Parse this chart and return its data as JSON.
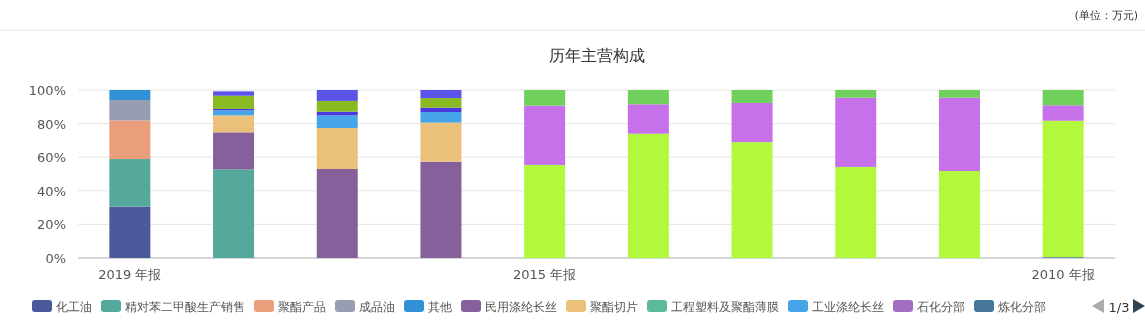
{
  "chart_data": {
    "type": "bar",
    "title": "历年主营构成",
    "stacked": true,
    "grid": "y",
    "legend": "bottom",
    "annotations": [
      "(单位：万元)",
      "1/3"
    ],
    "categories": [
      "2019 年报",
      null,
      null,
      null,
      "2015 年报",
      null,
      null,
      null,
      null,
      "2010 年报"
    ],
    "ylim": [
      0,
      100
    ],
    "yticks": [
      {
        "value": 0,
        "label": "0%"
      },
      {
        "value": 20,
        "label": "20%"
      },
      {
        "value": 40,
        "label": "40%"
      },
      {
        "value": 60,
        "label": "60%"
      },
      {
        "value": 80,
        "label": "80%"
      },
      {
        "value": 100,
        "label": "100%"
      }
    ],
    "series": [
      {
        "name": "化工油",
        "color": "#4a5a9a",
        "values": [
          30.6,
          null,
          null,
          null,
          null,
          null,
          null,
          null,
          null,
          null
        ]
      },
      {
        "name": "精对苯二甲酸生产销售",
        "color": "#55a89c",
        "values": [
          28.3,
          52.8,
          null,
          null,
          null,
          null,
          null,
          null,
          null,
          null
        ]
      },
      {
        "name": "聚酯产品",
        "color": "#eb9e7b",
        "values": [
          23.0,
          null,
          null,
          null,
          null,
          null,
          null,
          null,
          null,
          null
        ]
      },
      {
        "name": "成品油",
        "color": "#979eb2",
        "values": [
          12.1,
          null,
          null,
          null,
          null,
          null,
          null,
          null,
          null,
          null
        ]
      },
      {
        "name": "其他",
        "color": "#3290d6",
        "values": [
          6.0,
          null,
          null,
          null,
          null,
          null,
          null,
          null,
          null,
          null
        ]
      },
      {
        "name": "民用涤纶长丝",
        "color": "#85609b",
        "values": [
          null,
          22.0,
          53.0,
          57.3,
          null,
          null,
          null,
          null,
          null,
          null
        ]
      },
      {
        "name": "聚酯切片",
        "color": "#eac07a",
        "values": [
          null,
          10.1,
          24.4,
          23.3,
          null,
          null,
          null,
          null,
          null,
          null
        ]
      },
      {
        "name": "工程塑料及聚酯薄膜",
        "color": "#5bba98",
        "values": [
          null,
          null,
          null,
          null,
          null,
          null,
          null,
          null,
          null,
          null
        ]
      },
      {
        "name": "工业涤纶长丝",
        "color": "#45a5e8",
        "values": [
          null,
          3.0,
          7.5,
          6.3,
          null,
          null,
          null,
          null,
          null,
          null
        ]
      },
      {
        "name": "石化分部",
        "color": "#a46dc4",
        "values": [
          null,
          null,
          null,
          null,
          null,
          null,
          null,
          null,
          null,
          null
        ]
      },
      {
        "name": "炼化分部",
        "color": "#457699",
        "values": [
          null,
          null,
          null,
          null,
          null,
          null,
          null,
          null,
          null,
          0.5
        ]
      },
      {
        "color": "#4a3ae0",
        "values": [
          null,
          0.8,
          2.2,
          2.6,
          null,
          null,
          null,
          null,
          null,
          null
        ]
      },
      {
        "color": "#8aba21",
        "values": [
          null,
          7.9,
          6.4,
          5.7,
          null,
          null,
          null,
          null,
          null,
          null
        ]
      },
      {
        "color": "#5b52ea",
        "values": [
          null,
          2.6,
          6.5,
          4.8,
          null,
          null,
          null,
          null,
          null,
          null
        ]
      },
      {
        "color": "#b2f93e",
        "values": [
          null,
          null,
          null,
          null,
          55.4,
          74.0,
          69.0,
          54.2,
          51.8,
          81.2
        ]
      },
      {
        "color": "#c670ea",
        "values": [
          null,
          null,
          null,
          null,
          35.3,
          17.5,
          23.3,
          41.2,
          43.6,
          9.2
        ]
      },
      {
        "color": "#6fd05b",
        "values": [
          null,
          null,
          null,
          null,
          9.3,
          8.5,
          7.7,
          4.6,
          4.6,
          9.1
        ]
      }
    ]
  }
}
